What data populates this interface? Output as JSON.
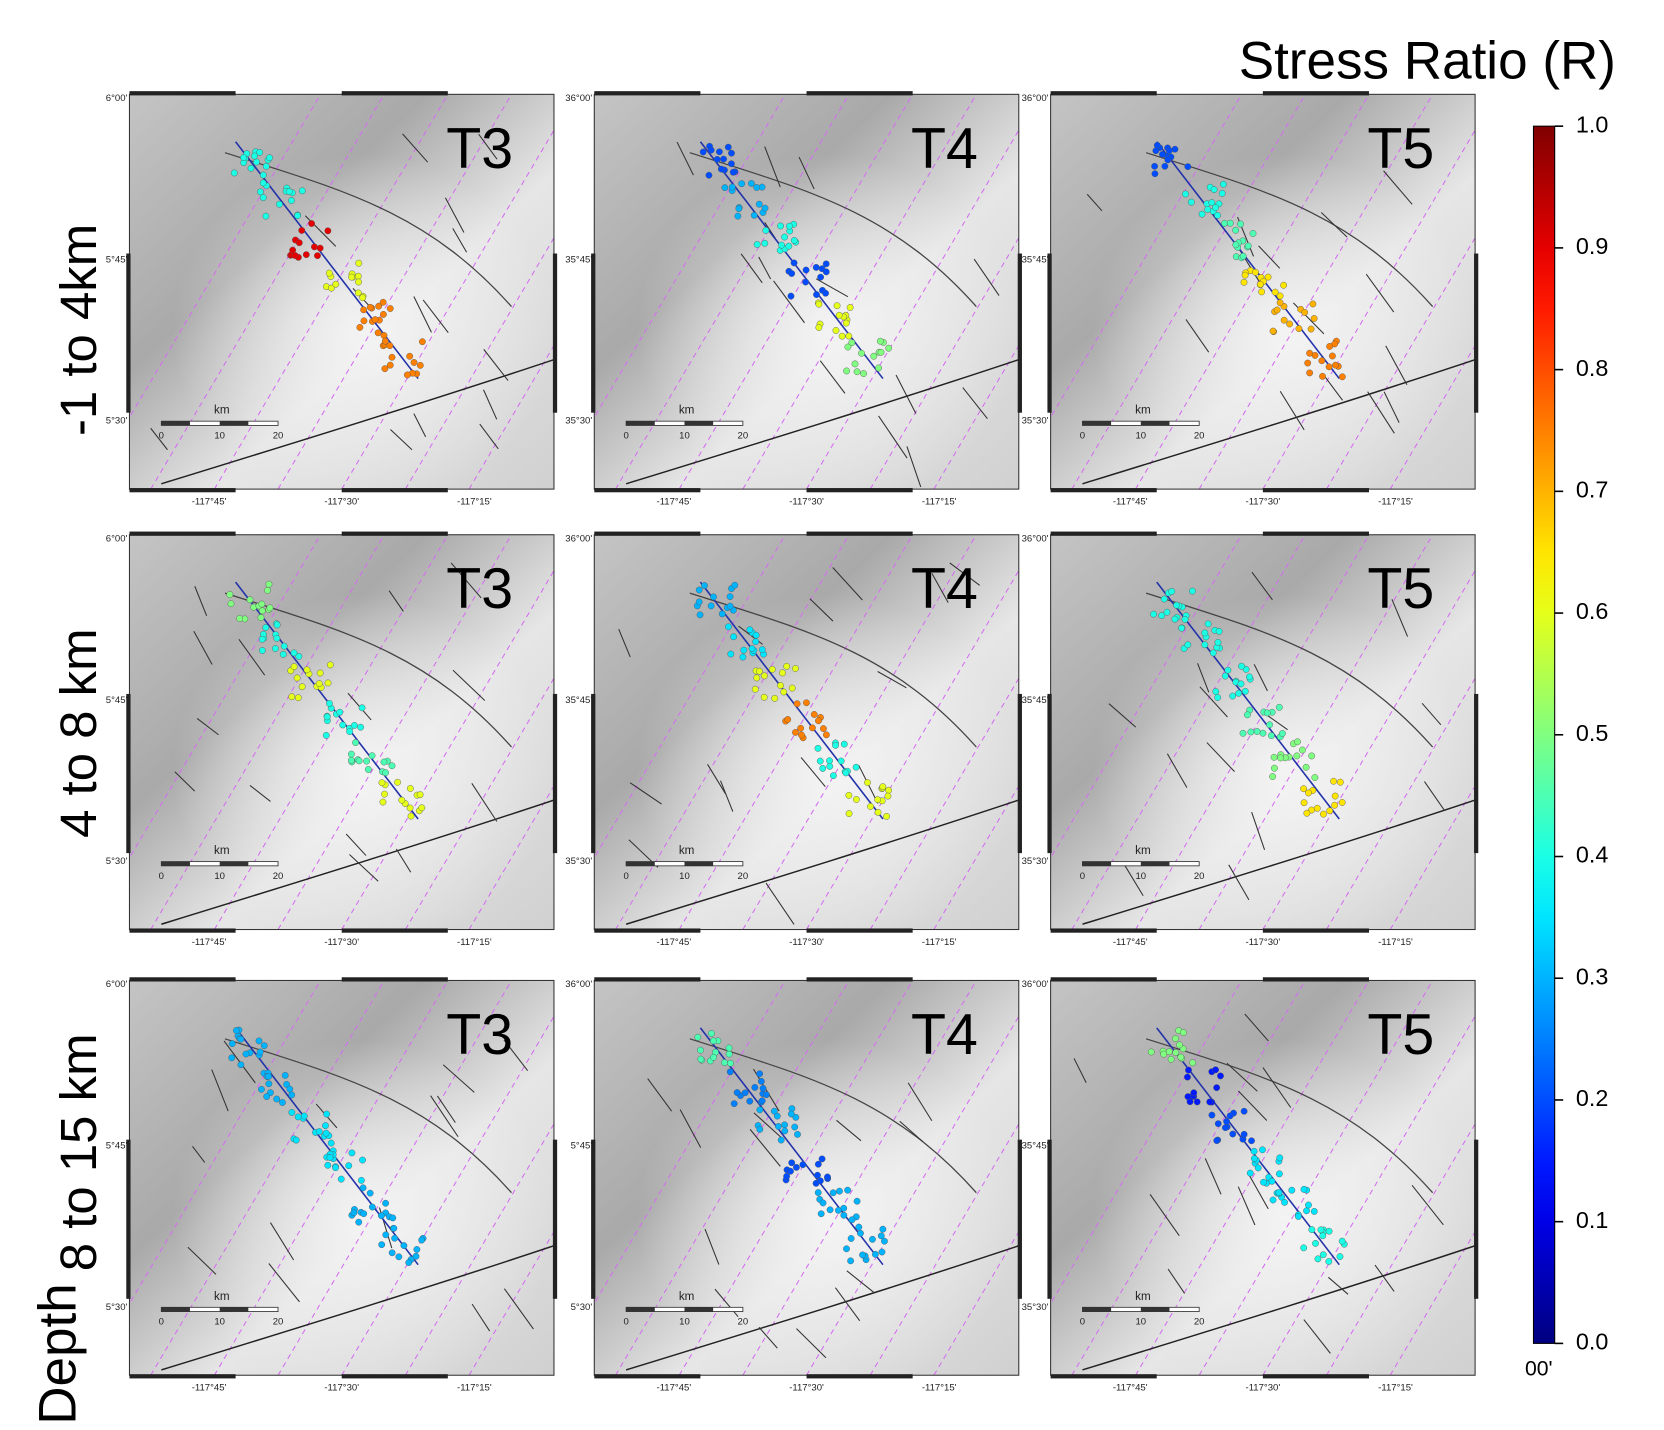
{
  "colorbar": {
    "title": "Stress Ratio (R)",
    "range": [
      0,
      1
    ],
    "ticks": [
      {
        "value": 0,
        "label": "0.0"
      },
      0.1,
      0.2,
      0.3,
      0.4,
      0.5,
      0.6,
      0.7,
      0.8,
      0.9,
      {
        "value": 1,
        "label": "1.0"
      }
    ],
    "colormap": "jet",
    "extra_label": "00'"
  },
  "row_labels": [
    "-1 to 4km",
    "4 to 8 km",
    "8 to 15 km"
  ],
  "depth_label": "Depth",
  "panels": [
    [
      {
        "label": "T3",
        "lat_labels": [
          "6°00'",
          "5°45'",
          "5°30'"
        ],
        "lon_labels": [
          "-117°45'",
          "-117°30'",
          "-117°15'"
        ],
        "scale": {
          "unit": "km",
          "labels": [
            "0",
            "10",
            "20"
          ]
        },
        "r_along_strike": [
          0.4,
          0.4,
          0.9,
          0.6,
          0.75,
          0.75
        ]
      },
      {
        "label": "T4",
        "lat_labels": [
          "36°00'",
          "35°45'",
          "35°30'"
        ],
        "lon_labels": [
          "-117°45'",
          "-117°30'",
          "-117°15'"
        ],
        "scale": {
          "unit": "km",
          "labels": [
            "0",
            "10",
            "20"
          ]
        },
        "r_along_strike": [
          0.2,
          0.3,
          0.4,
          0.2,
          0.6,
          0.5
        ]
      },
      {
        "label": "T5",
        "lat_labels": [
          "36°00'",
          "35°45'",
          "35°30'"
        ],
        "lon_labels": [
          "-117°45'",
          "-117°30'",
          "-117°15'"
        ],
        "scale": {
          "unit": "km",
          "labels": [
            "0",
            "10",
            "20"
          ]
        },
        "r_along_strike": [
          0.2,
          0.4,
          0.45,
          0.65,
          0.7,
          0.75
        ]
      }
    ],
    [
      {
        "label": "T3",
        "lat_labels": [
          "6°00'",
          "5°45'",
          "5°30'"
        ],
        "lon_labels": [
          "-117°45'",
          "-117°30'",
          "-117°15'"
        ],
        "scale": {
          "unit": "km",
          "labels": [
            "0",
            "10",
            "20"
          ]
        },
        "r_along_strike": [
          0.5,
          0.4,
          0.6,
          0.4,
          0.45,
          0.6
        ]
      },
      {
        "label": "T4",
        "lat_labels": [
          "36°00'",
          "35°45'",
          "35°30'"
        ],
        "lon_labels": [
          "-117°45'",
          "-117°30'",
          "-117°15'"
        ],
        "scale": {
          "unit": "km",
          "labels": [
            "0",
            "10",
            "20"
          ]
        },
        "r_along_strike": [
          0.3,
          0.35,
          0.6,
          0.75,
          0.4,
          0.6
        ]
      },
      {
        "label": "T5",
        "lat_labels": [
          "36°00'",
          "35°45'",
          "35°30'"
        ],
        "lon_labels": [
          "-117°45'",
          "-117°30'",
          "-117°15'"
        ],
        "scale": {
          "unit": "km",
          "labels": [
            "0",
            "10",
            "20"
          ]
        },
        "r_along_strike": [
          0.4,
          0.4,
          0.4,
          0.45,
          0.5,
          0.65
        ]
      }
    ],
    [
      {
        "label": "T3",
        "lat_labels": [
          "6°00'",
          "5°45'",
          "5°30'"
        ],
        "lon_labels": [
          "-117°45'",
          "-117°30'",
          "-117°15'"
        ],
        "scale": {
          "unit": "km",
          "labels": [
            "0",
            "10",
            "20"
          ]
        },
        "r_along_strike": [
          0.3,
          0.3,
          0.35,
          0.35,
          0.3,
          0.3
        ]
      },
      {
        "label": "T4",
        "lat_labels": [
          "36°00'",
          "5°45'",
          "5°30'"
        ],
        "lon_labels": [
          "-117°45'",
          "-117°30'",
          "-117°15'"
        ],
        "scale": {
          "unit": "km",
          "labels": [
            "0",
            "10",
            "20"
          ]
        },
        "r_along_strike": [
          0.45,
          0.25,
          0.3,
          0.2,
          0.3,
          0.3
        ]
      },
      {
        "label": "T5",
        "lat_labels": [
          "36°00'",
          "35°45'",
          "35°30'"
        ],
        "lon_labels": [
          "-117°45'",
          "-117°30'",
          "-117°15'"
        ],
        "scale": {
          "unit": "km",
          "labels": [
            "0",
            "10",
            "20"
          ]
        },
        "r_along_strike": [
          0.5,
          0.15,
          0.2,
          0.35,
          0.35,
          0.4
        ]
      }
    ]
  ]
}
